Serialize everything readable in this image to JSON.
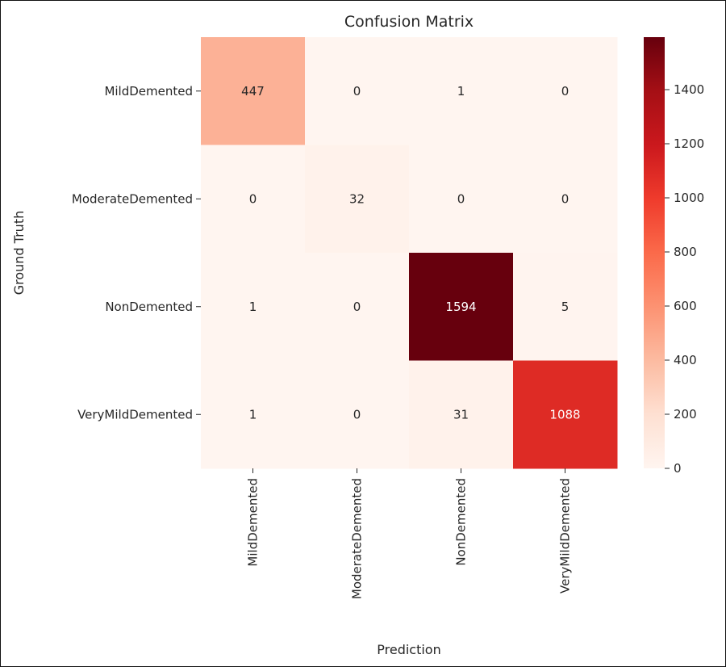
{
  "chart_data": {
    "type": "heatmap",
    "title": "Confusion Matrix",
    "xlabel": "Prediction",
    "ylabel": "Ground Truth",
    "x_categories": [
      "MildDemented",
      "ModerateDemented",
      "NonDemented",
      "VeryMildDemented"
    ],
    "y_categories": [
      "MildDemented",
      "ModerateDemented",
      "NonDemented",
      "VeryMildDemented"
    ],
    "values": [
      [
        447,
        0,
        1,
        0
      ],
      [
        0,
        32,
        0,
        0
      ],
      [
        1,
        0,
        1594,
        5
      ],
      [
        1,
        0,
        31,
        1088
      ]
    ],
    "colormap": "Reds",
    "colorbar": {
      "range": [
        0,
        1594
      ],
      "ticks": [
        "0",
        "200",
        "400",
        "600",
        "800",
        "1000",
        "1200",
        "1400"
      ]
    },
    "colormap_stops": [
      "#fff5f0",
      "#fee0d2",
      "#fcbba1",
      "#fc9272",
      "#fb6a4a",
      "#ef3b2c",
      "#cb181d",
      "#a50f15",
      "#67000d"
    ]
  }
}
